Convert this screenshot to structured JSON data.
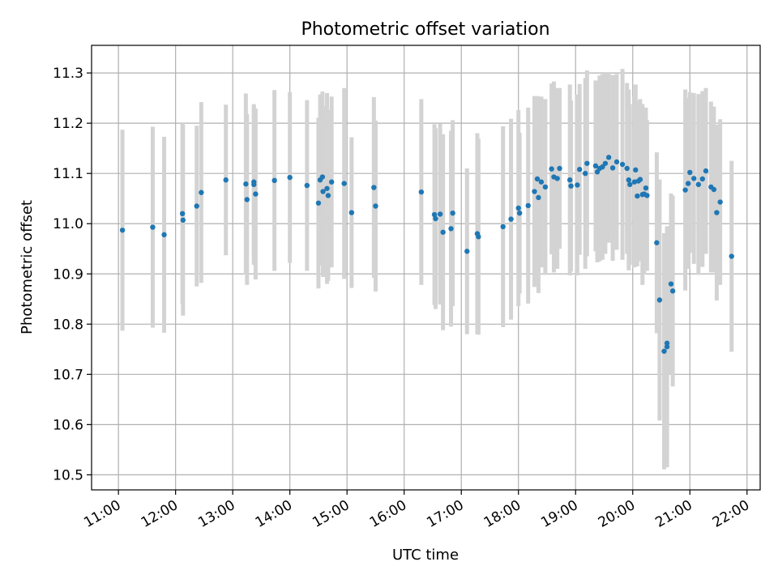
{
  "chart_data": {
    "type": "scatter",
    "title": "Photometric offset variation",
    "xlabel": "UTC time",
    "ylabel": "Photometric offset",
    "grid": true,
    "x_tick_labels": [
      "11:00",
      "12:00",
      "13:00",
      "14:00",
      "15:00",
      "16:00",
      "17:00",
      "18:00",
      "19:00",
      "20:00",
      "21:00",
      "22:00"
    ],
    "y_tick_labels": [
      "10.5",
      "10.6",
      "10.7",
      "10.8",
      "10.9",
      "11.0",
      "11.1",
      "11.2",
      "11.3"
    ],
    "x_ticks_hours": [
      11,
      12,
      13,
      14,
      15,
      16,
      17,
      18,
      19,
      20,
      21,
      22
    ],
    "y_ticks": [
      10.5,
      10.6,
      10.7,
      10.8,
      10.9,
      11.0,
      11.1,
      11.2,
      11.3
    ],
    "xlim_hours": [
      10.53,
      22.23
    ],
    "ylim": [
      10.47,
      11.355
    ],
    "colors": {
      "point": "#1f77b4",
      "errorbar": "#d3d3d3"
    },
    "points": [
      [
        11.07,
        10.987,
        0.2
      ],
      [
        11.6,
        10.993,
        0.2
      ],
      [
        11.8,
        10.978,
        0.195
      ],
      [
        12.12,
        11.02,
        0.18
      ],
      [
        12.13,
        11.007,
        0.19
      ],
      [
        12.37,
        11.035,
        0.16
      ],
      [
        12.45,
        11.062,
        0.18
      ],
      [
        12.88,
        11.087,
        0.15
      ],
      [
        13.23,
        11.079,
        0.18
      ],
      [
        13.25,
        11.048,
        0.17
      ],
      [
        13.37,
        11.083,
        0.15
      ],
      [
        13.37,
        11.078,
        0.16
      ],
      [
        13.4,
        11.059,
        0.17
      ],
      [
        13.73,
        11.086,
        0.18
      ],
      [
        14.0,
        11.092,
        0.17
      ],
      [
        14.3,
        11.076,
        0.17
      ],
      [
        14.5,
        11.041,
        0.17
      ],
      [
        14.53,
        11.087,
        0.17
      ],
      [
        14.57,
        11.093,
        0.17
      ],
      [
        14.58,
        11.064,
        0.17
      ],
      [
        14.65,
        11.07,
        0.19
      ],
      [
        14.67,
        11.056,
        0.17
      ],
      [
        14.73,
        11.083,
        0.17
      ],
      [
        14.95,
        11.08,
        0.19
      ],
      [
        15.08,
        11.022,
        0.15
      ],
      [
        15.47,
        11.072,
        0.18
      ],
      [
        15.5,
        11.035,
        0.17
      ],
      [
        16.3,
        11.063,
        0.185
      ],
      [
        16.53,
        11.018,
        0.18
      ],
      [
        16.55,
        11.01,
        0.18
      ],
      [
        16.63,
        11.019,
        0.18
      ],
      [
        16.68,
        10.983,
        0.195
      ],
      [
        16.82,
        10.99,
        0.195
      ],
      [
        16.85,
        11.021,
        0.185
      ],
      [
        17.1,
        10.945,
        0.165
      ],
      [
        17.28,
        10.98,
        0.2
      ],
      [
        17.3,
        10.974,
        0.195
      ],
      [
        17.73,
        10.994,
        0.2
      ],
      [
        17.87,
        11.009,
        0.2
      ],
      [
        18.0,
        11.031,
        0.195
      ],
      [
        18.02,
        11.021,
        0.16
      ],
      [
        18.17,
        11.036,
        0.195
      ],
      [
        18.28,
        11.064,
        0.19
      ],
      [
        18.33,
        11.089,
        0.165
      ],
      [
        18.35,
        11.052,
        0.19
      ],
      [
        18.4,
        11.083,
        0.17
      ],
      [
        18.47,
        11.073,
        0.175
      ],
      [
        18.58,
        11.109,
        0.17
      ],
      [
        18.62,
        11.093,
        0.19
      ],
      [
        18.68,
        11.09,
        0.18
      ],
      [
        18.72,
        11.11,
        0.16
      ],
      [
        18.9,
        11.087,
        0.19
      ],
      [
        18.92,
        11.075,
        0.17
      ],
      [
        19.03,
        11.077,
        0.18
      ],
      [
        19.07,
        11.108,
        0.17
      ],
      [
        19.17,
        11.1,
        0.19
      ],
      [
        19.2,
        11.12,
        0.185
      ],
      [
        19.35,
        11.115,
        0.17
      ],
      [
        19.38,
        11.103,
        0.18
      ],
      [
        19.42,
        11.11,
        0.185
      ],
      [
        19.47,
        11.113,
        0.185
      ],
      [
        19.52,
        11.12,
        0.18
      ],
      [
        19.58,
        11.132,
        0.17
      ],
      [
        19.65,
        11.111,
        0.185
      ],
      [
        19.72,
        11.123,
        0.175
      ],
      [
        19.82,
        11.118,
        0.19
      ],
      [
        19.9,
        11.11,
        0.17
      ],
      [
        19.93,
        11.087,
        0.18
      ],
      [
        19.95,
        11.078,
        0.16
      ],
      [
        20.03,
        11.083,
        0.17
      ],
      [
        20.05,
        11.107,
        0.17
      ],
      [
        20.08,
        11.055,
        0.14
      ],
      [
        20.1,
        11.085,
        0.16
      ],
      [
        20.13,
        11.088,
        0.16
      ],
      [
        20.17,
        11.058,
        0.18
      ],
      [
        20.2,
        11.059,
        0.16
      ],
      [
        20.23,
        11.071,
        0.16
      ],
      [
        20.25,
        11.056,
        0.15
      ],
      [
        20.42,
        10.962,
        0.18
      ],
      [
        20.47,
        10.848,
        0.24
      ],
      [
        20.55,
        10.746,
        0.235
      ],
      [
        20.6,
        10.755,
        0.24
      ],
      [
        20.6,
        10.762,
        0.22
      ],
      [
        20.67,
        10.88,
        0.18
      ],
      [
        20.7,
        10.866,
        0.19
      ],
      [
        20.92,
        11.067,
        0.2
      ],
      [
        20.97,
        11.08,
        0.17
      ],
      [
        21.0,
        11.102,
        0.16
      ],
      [
        21.07,
        11.09,
        0.17
      ],
      [
        21.15,
        11.078,
        0.18
      ],
      [
        21.22,
        11.089,
        0.175
      ],
      [
        21.28,
        11.105,
        0.165
      ],
      [
        21.37,
        11.073,
        0.17
      ],
      [
        21.42,
        11.068,
        0.165
      ],
      [
        21.47,
        11.022,
        0.175
      ],
      [
        21.53,
        11.043,
        0.165
      ],
      [
        21.73,
        10.935,
        0.19
      ]
    ]
  }
}
